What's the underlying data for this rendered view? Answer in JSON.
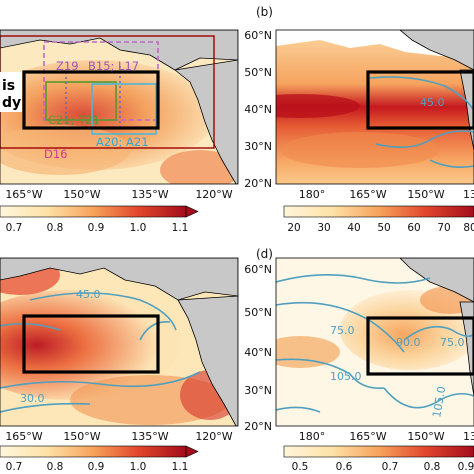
{
  "colors": {
    "land": "#c8c8c8",
    "coast": "#000000",
    "heat_low": "#fff4d6",
    "heat_mid": "#f6a25a",
    "heat_high": "#b80f1a",
    "contour": "#4f9fbf",
    "box_black": "#000000",
    "box_red": "#a00000",
    "box_purple": "#c067c8",
    "box_green": "#559a2b",
    "box_cyan": "#4cb6d9",
    "box_blue": "#5a66d2",
    "text_green": "#559a2b",
    "text_cyan": "#34a5d0",
    "text_purple": "#9a58b8",
    "text_magenta": "#d6349a"
  },
  "panels": {
    "a": {
      "text_is": "is",
      "text_dy": "dy",
      "xticks": [
        "165°W",
        "150°W",
        "135°W",
        "120°W"
      ],
      "annotations": {
        "z19": "Z19",
        "b15_l17": "B15; L17",
        "c21_t21": "C21; T21",
        "a20_a21": "A20; A21",
        "d16": "D16"
      },
      "colorbar_ticks": [
        "0.7",
        "0.8",
        "0.9",
        "1.0",
        "1.1"
      ]
    },
    "b": {
      "label": "(b)",
      "yticks": [
        "60°N",
        "50°N",
        "40°N",
        "30°N",
        "20°N"
      ],
      "xticks": [
        "180°",
        "165°W",
        "150°W",
        "13"
      ],
      "contour_labels": [
        "45.0"
      ],
      "colorbar_ticks": [
        "20",
        "30",
        "40",
        "50",
        "60",
        "70",
        "80"
      ]
    },
    "c": {
      "xticks": [
        "165°W",
        "150°W",
        "135°W",
        "120°W"
      ],
      "contour_labels": [
        "45.0",
        "30.0"
      ],
      "colorbar_ticks": [
        "0.7",
        "0.8",
        "0.9",
        "1.0",
        "1.1"
      ]
    },
    "d": {
      "label": "(d)",
      "yticks": [
        "60°N",
        "50°N",
        "40°N",
        "30°N",
        "20°N"
      ],
      "xticks": [
        "180°",
        "165°W",
        "150°W",
        "13"
      ],
      "contour_labels": [
        "75.0",
        "90.0",
        "75.0",
        "105.0",
        "105.0"
      ],
      "colorbar_ticks": [
        "0.5",
        "0.6",
        "0.7",
        "0.8",
        "0.9"
      ]
    }
  }
}
